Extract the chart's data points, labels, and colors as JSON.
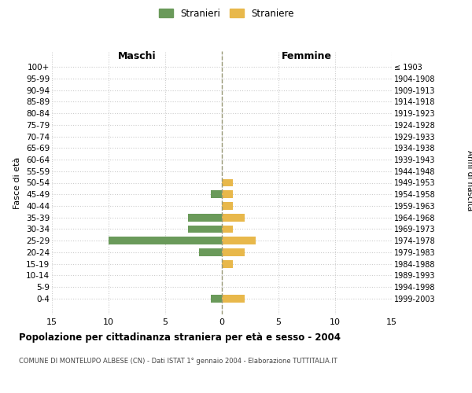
{
  "age_groups": [
    "100+",
    "95-99",
    "90-94",
    "85-89",
    "80-84",
    "75-79",
    "70-74",
    "65-69",
    "60-64",
    "55-59",
    "50-54",
    "45-49",
    "40-44",
    "35-39",
    "30-34",
    "25-29",
    "20-24",
    "15-19",
    "10-14",
    "5-9",
    "0-4"
  ],
  "birth_years": [
    "≤ 1903",
    "1904-1908",
    "1909-1913",
    "1914-1918",
    "1919-1923",
    "1924-1928",
    "1929-1933",
    "1934-1938",
    "1939-1943",
    "1944-1948",
    "1949-1953",
    "1954-1958",
    "1959-1963",
    "1964-1968",
    "1969-1973",
    "1974-1978",
    "1979-1983",
    "1984-1988",
    "1989-1993",
    "1994-1998",
    "1999-2003"
  ],
  "maschi": [
    0,
    0,
    0,
    0,
    0,
    0,
    0,
    0,
    0,
    0,
    0,
    1,
    0,
    3,
    3,
    10,
    2,
    0,
    0,
    0,
    1
  ],
  "femmine": [
    0,
    0,
    0,
    0,
    0,
    0,
    0,
    0,
    0,
    0,
    1,
    1,
    1,
    2,
    1,
    3,
    2,
    1,
    0,
    0,
    2
  ],
  "color_maschi": "#6a9a5a",
  "color_femmine": "#e8b84b",
  "title": "Popolazione per cittadinanza straniera per età e sesso - 2004",
  "subtitle": "COMUNE DI MONTELUPO ALBESE (CN) - Dati ISTAT 1° gennaio 2004 - Elaborazione TUTTITALIA.IT",
  "ylabel_left": "Fasce di età",
  "ylabel_right": "Anni di nascita",
  "xlabel_left": "Maschi",
  "xlabel_right": "Femmine",
  "legend_maschi": "Stranieri",
  "legend_femmine": "Straniere",
  "xlim": 15,
  "background_color": "#ffffff",
  "grid_color": "#cccccc",
  "center_line_color": "#999977"
}
